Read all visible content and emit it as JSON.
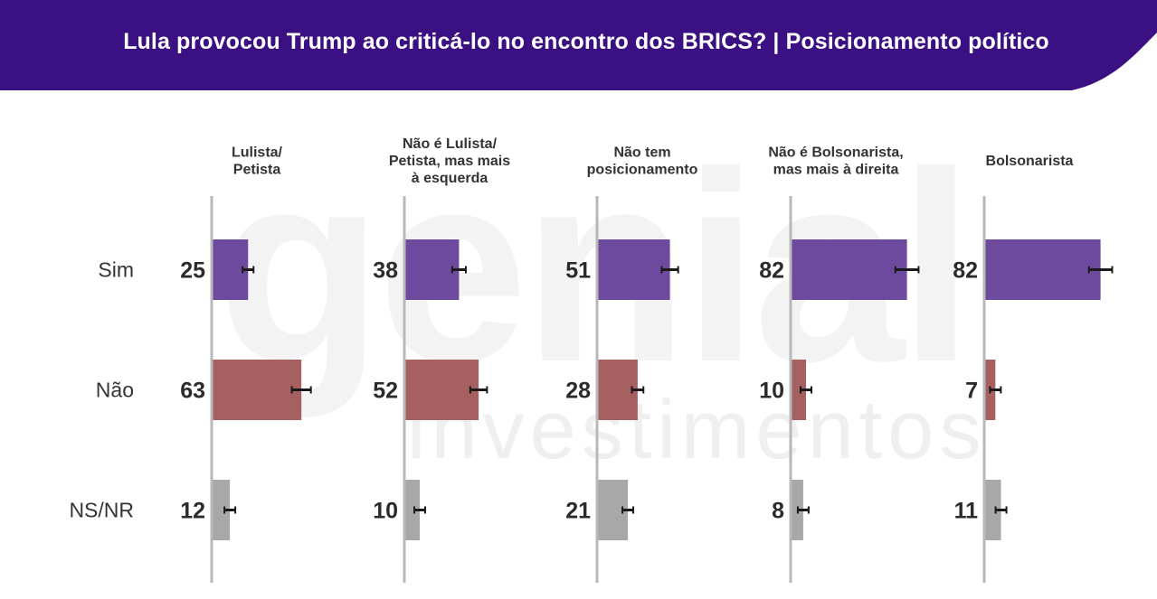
{
  "title": "Lula provocou Trump ao criticá-lo no encontro dos BRICS? | Posicionamento político",
  "colors": {
    "header": "#3a1082",
    "sim": "#6e4a9e",
    "nao": "#a66060",
    "nsnr": "#a8a8a8",
    "axis": "#b8b8b8",
    "error": "#1a1a1a"
  },
  "watermark": {
    "logo": "genial",
    "sub": "investimentos"
  },
  "chart_data": {
    "type": "bar",
    "orientation": "horizontal",
    "categories": [
      "Sim",
      "Não",
      "NS/NR"
    ],
    "panels": [
      {
        "label": "Lulista/\nPetista",
        "values": [
          25,
          63,
          12
        ]
      },
      {
        "label": "Não é Lulista/\nPetista, mas mais\nà esquerda",
        "values": [
          38,
          52,
          10
        ]
      },
      {
        "label": "Não tem\nposicionamento",
        "values": [
          51,
          28,
          21
        ]
      },
      {
        "label": "Não é Bolsonarista,\nmas mais à direita",
        "values": [
          82,
          10,
          8
        ]
      },
      {
        "label": "Bolsonarista",
        "values": [
          82,
          7,
          11
        ]
      }
    ],
    "error_bars": true,
    "xlim": [
      0,
      100
    ]
  }
}
